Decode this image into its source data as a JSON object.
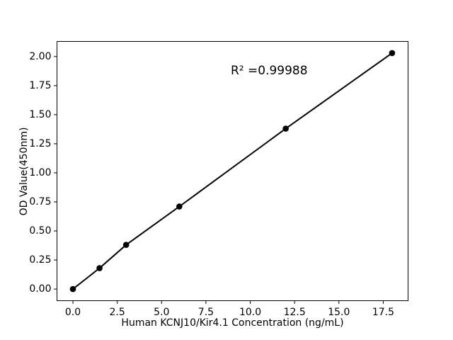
{
  "figure": {
    "background": "#ffffff"
  },
  "chart_data": {
    "type": "line",
    "title": "",
    "xlabel": "Human KCNJ10/Kir4.1 Concentration (ng/mL)",
    "ylabel": "OD Value(450nm)",
    "x": [
      0,
      1.5,
      3,
      6,
      12,
      18
    ],
    "y": [
      0.0,
      0.18,
      0.38,
      0.71,
      1.38,
      2.03
    ],
    "xlim": [
      -0.9,
      18.9
    ],
    "ylim": [
      -0.1,
      2.13
    ],
    "xticks": {
      "values": [
        0,
        2.5,
        5,
        7.5,
        10,
        12.5,
        15,
        17.5
      ],
      "labels": [
        "0.0",
        "2.5",
        "5.0",
        "7.5",
        "10.0",
        "12.5",
        "15.0",
        "17.5"
      ]
    },
    "yticks": {
      "values": [
        0,
        0.25,
        0.5,
        0.75,
        1.0,
        1.25,
        1.5,
        1.75,
        2.0
      ],
      "labels": [
        "0.00",
        "0.25",
        "0.50",
        "0.75",
        "1.00",
        "1.25",
        "1.50",
        "1.75",
        "2.00"
      ]
    },
    "annotation": {
      "text": "R² =0.99988",
      "x": 8.9,
      "y": 1.84
    },
    "grid": false,
    "legend": "none",
    "line_color": "#000000",
    "marker_color": "#000000",
    "marker_size_px": 8.6,
    "axis_color": "#000000"
  }
}
